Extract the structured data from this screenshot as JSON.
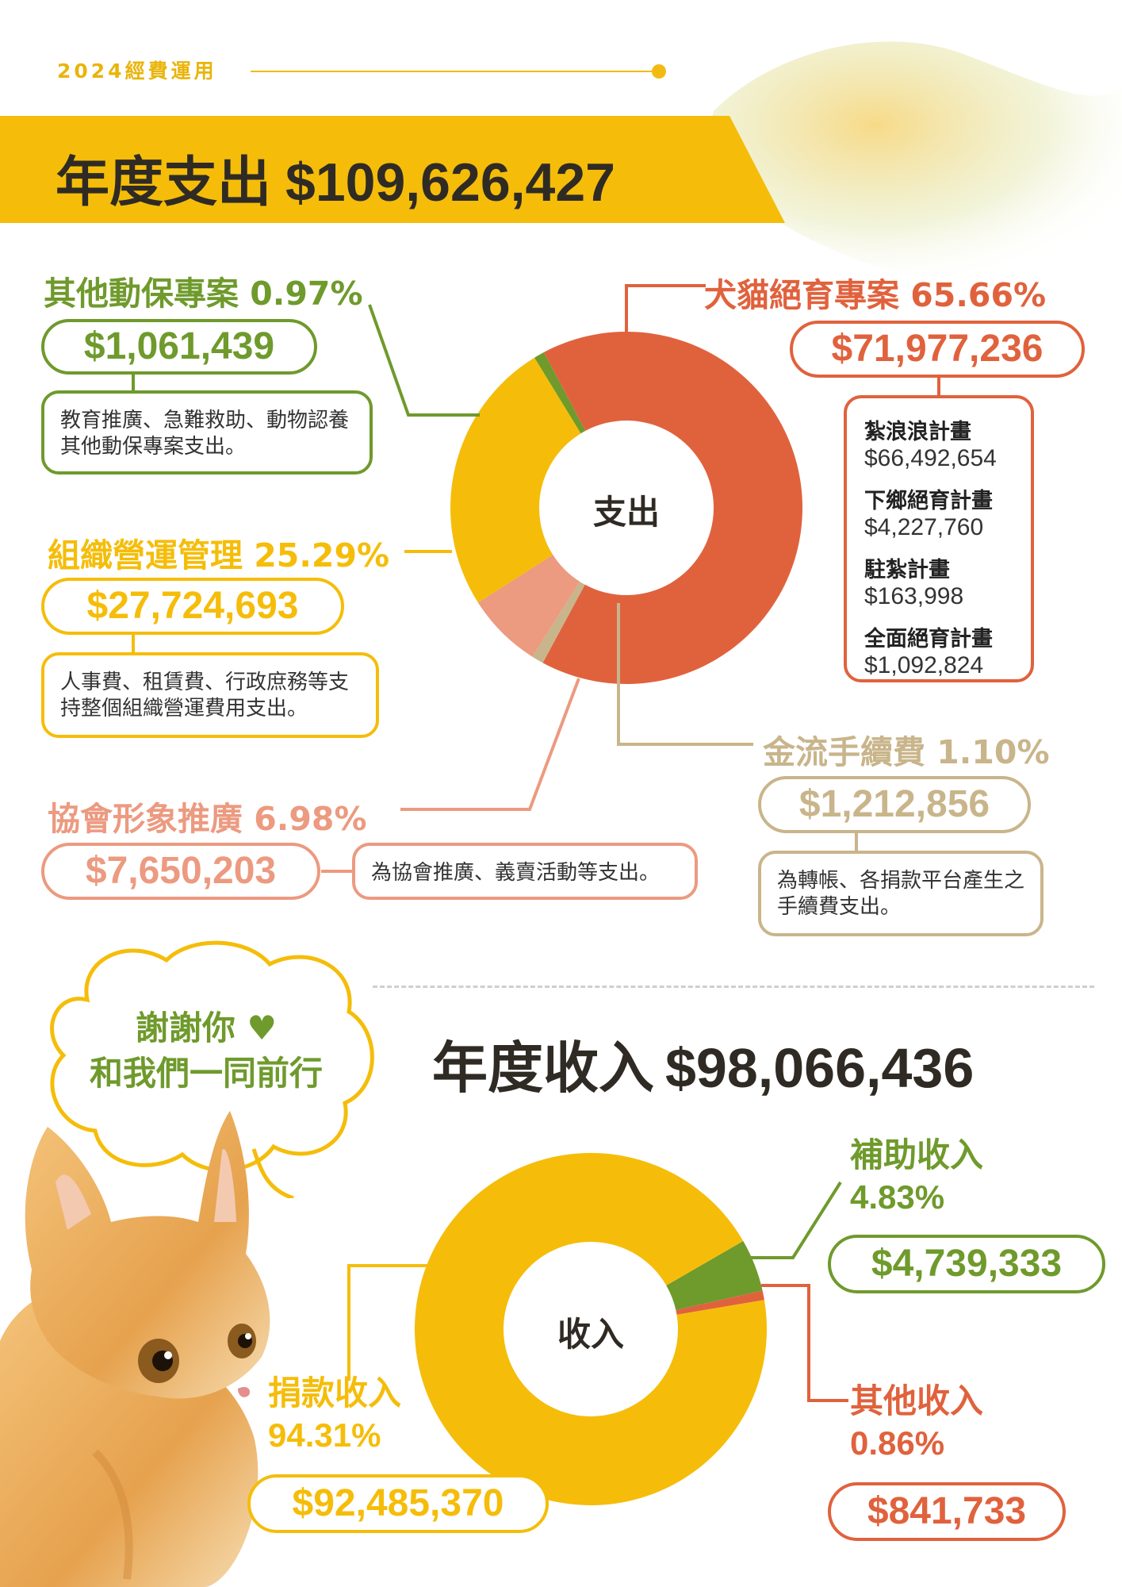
{
  "header": {
    "year_label": "2024經費運用"
  },
  "expense": {
    "label": "年度支出",
    "total": "$109,626,427",
    "center_label": "支出",
    "categories": {
      "animal": {
        "title": "其他動保專案",
        "percent": "0.97%",
        "amount": "$1,061,439",
        "desc": "教育推廣、急難救助、動物認養其他動保專案支出。"
      },
      "tnr": {
        "title": "犬貓絕育專案",
        "percent": "65.66%",
        "amount": "$71,977,236",
        "items": [
          {
            "name": "紮浪浪計畫",
            "amount": "$66,492,654"
          },
          {
            "name": "下鄉絕育計畫",
            "amount": "$4,227,760"
          },
          {
            "name": "駐紮計畫",
            "amount": "$163,998"
          },
          {
            "name": "全面絕育計畫",
            "amount": "$1,092,824"
          }
        ]
      },
      "ops": {
        "title": "組織營運管理",
        "percent": "25.29%",
        "amount": "$27,724,693",
        "desc": "人事費、租賃費、行政庶務等支持整個組織營運費用支出。"
      },
      "promo": {
        "title": "協會形象推廣",
        "percent": "6.98%",
        "amount": "$7,650,203",
        "desc": "為協會推廣、義賣活動等支出。"
      },
      "fee": {
        "title": "金流手續費",
        "percent": "1.10%",
        "amount": "$1,212,856",
        "desc": "為轉帳、各捐款平台產生之手續費支出。"
      }
    }
  },
  "thanks": {
    "line1": "謝謝你",
    "line2": "和我們一同前行"
  },
  "income": {
    "label": "年度收入",
    "total": "$98,066,436",
    "center_label": "收入",
    "categories": {
      "donation": {
        "title": "捐款收入",
        "percent": "94.31%",
        "amount": "$92,485,370"
      },
      "subsidy": {
        "title": "補助收入",
        "percent": "4.83%",
        "amount": "$4,739,333"
      },
      "other": {
        "title": "其他收入",
        "percent": "0.86%",
        "amount": "$841,733"
      }
    }
  },
  "colors": {
    "tnr": "#e0623d",
    "ops": "#f5bd0a",
    "promo": "#ec9a80",
    "fee": "#c9b58b",
    "animal": "#6f9a2c",
    "donation": "#f5bd0a",
    "subsidy": "#6f9a2c",
    "other": "#e0623d"
  },
  "chart_data": [
    {
      "type": "pie",
      "categories": [
        "犬貓絕育專案",
        "金流手續費",
        "協會形象推廣",
        "組織營運管理",
        "其他動保專案"
      ],
      "values": [
        65.66,
        1.1,
        6.98,
        25.29,
        0.97
      ],
      "colors": [
        "#e0623d",
        "#c9b58b",
        "#ec9a80",
        "#f5bd0a",
        "#6f9a2c"
      ]
    },
    {
      "type": "pie",
      "categories": [
        "補助收入",
        "其他收入",
        "捐款收入"
      ],
      "values": [
        4.83,
        0.86,
        94.31
      ],
      "colors": [
        "#6f9a2c",
        "#e0623d",
        "#f5bd0a"
      ]
    }
  ]
}
